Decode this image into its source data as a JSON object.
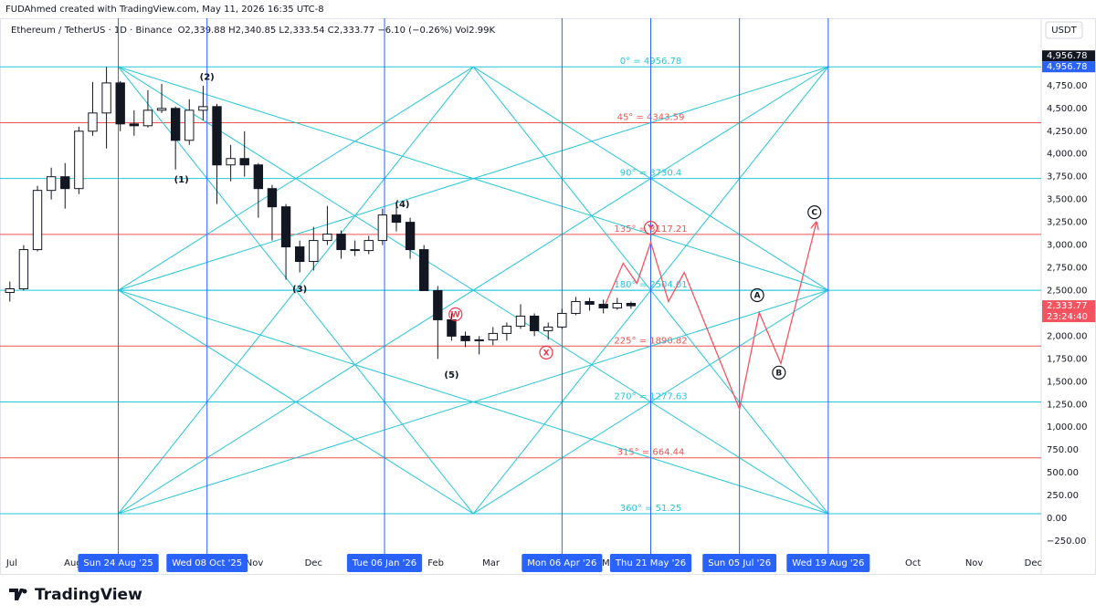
{
  "chart_data": {
    "type": "candlestick",
    "attribution": "FUDAhmed created with TradingView.com, May 11, 2026 16:35 UTC-8",
    "title": "Ethereum / TetherUS · 1D · Binance",
    "subtitle": "O2,339.88 H2,340.85 L2,333.54 C2,333.77 −6.10 (−0.26%) Vol2.99K",
    "currency": "USDT",
    "brand": "TradingView",
    "xlim": [
      "2025-06-25",
      "2026-12-05"
    ],
    "ylim": [
      -360,
      5470
    ],
    "yticks": [
      {
        "value": -250,
        "label": "−250.00"
      },
      {
        "value": 0,
        "label": "0.00"
      },
      {
        "value": 250,
        "label": "250.00"
      },
      {
        "value": 500,
        "label": "500.00"
      },
      {
        "value": 750,
        "label": "750.00"
      },
      {
        "value": 1000,
        "label": "1,000.00"
      },
      {
        "value": 1250,
        "label": "1,250.00"
      },
      {
        "value": 1500,
        "label": "1,500.00"
      },
      {
        "value": 1750,
        "label": "1,750.00"
      },
      {
        "value": 2000,
        "label": "2,000.00"
      },
      {
        "value": 2250,
        "label": "2,250.00"
      },
      {
        "value": 2500,
        "label": "2,500.00"
      },
      {
        "value": 2750,
        "label": "2,750.00"
      },
      {
        "value": 3000,
        "label": "3,000.00"
      },
      {
        "value": 3250,
        "label": "3,250.00"
      },
      {
        "value": 3500,
        "label": "3,500.00"
      },
      {
        "value": 3750,
        "label": "3,750.00"
      },
      {
        "value": 4000,
        "label": "4,000.00"
      },
      {
        "value": 4250,
        "label": "4,250.00"
      },
      {
        "value": 4500,
        "label": "4,500.00"
      },
      {
        "value": 4750,
        "label": "4,750.00"
      }
    ],
    "xticks": [
      {
        "value": "2025-07-01",
        "label": "Jul"
      },
      {
        "value": "2025-08-01",
        "label": "Aug"
      },
      {
        "value": "2025-11-01",
        "label": "Nov"
      },
      {
        "value": "2025-12-01",
        "label": "Dec"
      },
      {
        "value": "2026-02-01",
        "label": "Feb"
      },
      {
        "value": "2026-03-01",
        "label": "Mar"
      },
      {
        "value": "2026-05-01",
        "label": "May"
      },
      {
        "value": "2026-10-01",
        "label": "Oct"
      },
      {
        "value": "2026-11-01",
        "label": "Nov"
      },
      {
        "value": "2026-12-01",
        "label": "Dec"
      }
    ],
    "markers": [
      {
        "value": "2025-08-24",
        "label": "Sun 24 Aug '25"
      },
      {
        "value": "2025-10-08",
        "label": "Wed 08 Oct '25"
      },
      {
        "value": "2026-01-06",
        "label": "Tue 06 Jan '26"
      },
      {
        "value": "2026-04-06",
        "label": "Mon 06 Apr '26"
      },
      {
        "value": "2026-05-21",
        "label": "Thu 21 May '26"
      },
      {
        "value": "2026-07-05",
        "label": "Sun 05 Jul '26"
      },
      {
        "value": "2026-08-19",
        "label": "Wed 19 Aug '26"
      }
    ],
    "up_color": "#ffffff",
    "down_color": "#131722",
    "marker_color": "#2962ff",
    "fan_color": "#26c6da",
    "x": [
      "2025-06-30",
      "2025-07-07",
      "2025-07-14",
      "2025-07-21",
      "2025-07-28",
      "2025-08-04",
      "2025-08-11",
      "2025-08-18",
      "2025-08-25",
      "2025-09-01",
      "2025-09-08",
      "2025-09-15",
      "2025-09-22",
      "2025-09-29",
      "2025-10-06",
      "2025-10-13",
      "2025-10-20",
      "2025-10-27",
      "2025-11-03",
      "2025-11-10",
      "2025-11-17",
      "2025-11-24",
      "2025-12-01",
      "2025-12-08",
      "2025-12-15",
      "2025-12-22",
      "2025-12-29",
      "2026-01-05",
      "2026-01-12",
      "2026-01-19",
      "2026-01-26",
      "2026-02-02",
      "2026-02-09",
      "2026-02-16",
      "2026-02-23",
      "2026-03-02",
      "2026-03-09",
      "2026-03-16",
      "2026-03-23",
      "2026-03-30",
      "2026-04-06",
      "2026-04-13",
      "2026-04-20",
      "2026-04-27",
      "2026-05-04",
      "2026-05-11"
    ],
    "open": [
      2480,
      2520,
      2950,
      3600,
      3750,
      3620,
      4250,
      4450,
      4780,
      4330,
      4310,
      4480,
      4500,
      4150,
      4480,
      4520,
      3880,
      3950,
      3880,
      3620,
      3420,
      2980,
      2820,
      3050,
      3120,
      2950,
      2940,
      3050,
      3330,
      3250,
      2950,
      2500,
      2180,
      2000,
      1950,
      1960,
      2030,
      2110,
      2220,
      2060,
      2100,
      2250,
      2380,
      2350,
      2310,
      2360
    ],
    "high": [
      2600,
      3000,
      3650,
      3850,
      3900,
      4300,
      4790,
      4956.78,
      4800,
      4480,
      4700,
      4770,
      4520,
      4600,
      4750,
      4550,
      4100,
      4250,
      3900,
      3660,
      3450,
      3050,
      3200,
      3430,
      3160,
      3050,
      3100,
      3400,
      3420,
      3300,
      3000,
      2550,
      2250,
      2050,
      2000,
      2100,
      2150,
      2350,
      2250,
      2150,
      2300,
      2430,
      2420,
      2400,
      2420,
      2380
    ],
    "low": [
      2380,
      2500,
      2930,
      3500,
      3400,
      3560,
      4200,
      4060,
      4250,
      4200,
      4290,
      4450,
      3830,
      4100,
      4370,
      3450,
      3700,
      3750,
      3300,
      3050,
      2620,
      2700,
      2720,
      3000,
      2850,
      2880,
      2900,
      3000,
      3150,
      2850,
      2500,
      1750,
      1950,
      1880,
      1800,
      1900,
      1950,
      2080,
      2000,
      1960,
      2080,
      2230,
      2280,
      2250,
      2290,
      2300
    ],
    "close": [
      2520,
      2950,
      3600,
      3750,
      3620,
      4250,
      4450,
      4780,
      4330,
      4310,
      4480,
      4500,
      4150,
      4480,
      4520,
      3880,
      3950,
      3880,
      3620,
      3420,
      2980,
      2820,
      3050,
      3120,
      2950,
      2940,
      3050,
      3330,
      3250,
      2950,
      2500,
      2180,
      2000,
      1950,
      1960,
      2030,
      2110,
      2220,
      2060,
      2100,
      2250,
      2380,
      2350,
      2310,
      2360,
      2333.77
    ],
    "gann": {
      "start": "2025-08-24",
      "end": "2026-08-19",
      "levels": [
        {
          "value": 4956.78,
          "label": "0° = 4956.78",
          "color": "#26c6da"
        },
        {
          "value": 4343.59,
          "label": "45° = 4343.59",
          "color": "#ef5350"
        },
        {
          "value": 3730.4,
          "label": "90° = 3730.4",
          "color": "#26c6da"
        },
        {
          "value": 3117.21,
          "label": "135° = 3117.21",
          "color": "#ef5350"
        },
        {
          "value": 2504.01,
          "label": "180° = 2504.01",
          "color": "#26c6da"
        },
        {
          "value": 1890.82,
          "label": "225° = 1890.82",
          "color": "#ef5350"
        },
        {
          "value": 1277.63,
          "label": "270° = 1277.63",
          "color": "#26c6da"
        },
        {
          "value": 664.44,
          "label": "315° = 664.44",
          "color": "#ef5350"
        },
        {
          "value": 51.25,
          "label": "360° = 51.25",
          "color": "#26c6da"
        }
      ]
    },
    "annotations": [
      {
        "x": "2025-09-25",
        "y": 3720,
        "label": "(1)",
        "circled": false,
        "color": "#131722"
      },
      {
        "x": "2025-10-08",
        "y": 4850,
        "label": "(2)",
        "circled": false,
        "color": "#131722"
      },
      {
        "x": "2025-11-24",
        "y": 2520,
        "label": "(3)",
        "circled": false,
        "color": "#131722"
      },
      {
        "x": "2026-01-15",
        "y": 3450,
        "label": "(4)",
        "circled": false,
        "color": "#131722"
      },
      {
        "x": "2026-02-09",
        "y": 1580,
        "label": "(5)",
        "circled": false,
        "color": "#131722"
      },
      {
        "x": "2026-02-11",
        "y": 2240,
        "label": "W",
        "circled": true,
        "color": "#f23645"
      },
      {
        "x": "2026-03-29",
        "y": 1820,
        "label": "X",
        "circled": true,
        "color": "#f23645"
      },
      {
        "x": "2026-05-21",
        "y": 3190,
        "label": "Y",
        "circled": true,
        "color": "#f23645"
      },
      {
        "x": "2026-07-14",
        "y": 2450,
        "label": "A",
        "circled": true,
        "color": "#131722"
      },
      {
        "x": "2026-07-25",
        "y": 1600,
        "label": "B",
        "circled": true,
        "color": "#131722"
      },
      {
        "x": "2026-08-12",
        "y": 3360,
        "label": "C",
        "circled": true,
        "color": "#131722"
      }
    ],
    "projection": {
      "color": "#f7525f",
      "x": [
        "2026-04-28",
        "2026-05-07",
        "2026-05-14",
        "2026-05-21",
        "2026-05-30",
        "2026-06-07",
        "2026-07-05",
        "2026-07-15",
        "2026-07-26",
        "2026-08-13"
      ],
      "values": [
        2350,
        2800,
        2580,
        3030,
        2380,
        2700,
        1200,
        2260,
        1700,
        3250
      ]
    },
    "price_labels": [
      {
        "value": 4956.78,
        "label": "4,956.78",
        "color": "#131722"
      },
      {
        "value": 4956.78,
        "label": "4,956.78",
        "color": "#2962ff"
      },
      {
        "value": 2333.77,
        "label": "2,333.77",
        "sub": "23:24:40",
        "color": "#f7525f"
      }
    ]
  }
}
